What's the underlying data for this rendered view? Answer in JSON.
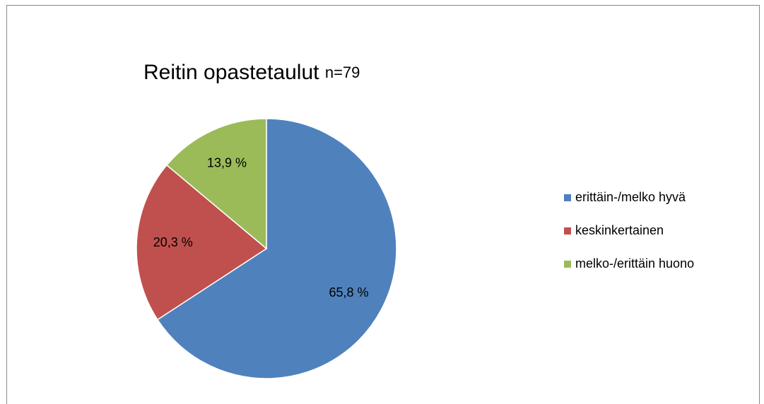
{
  "chart_data": {
    "type": "pie",
    "title": "Reitin opastetaulut",
    "subtitle": "n=79",
    "categories": [
      "erittäin-/melko hyvä",
      "keskinkertainen",
      "melko-/erittäin huono"
    ],
    "values": [
      65.8,
      20.3,
      13.9
    ],
    "value_labels": [
      "65,8 %",
      "20,3 %",
      "13,9 %"
    ],
    "colors": [
      "#4f81bd",
      "#c0504d",
      "#9bbb59"
    ],
    "legend": "right"
  }
}
